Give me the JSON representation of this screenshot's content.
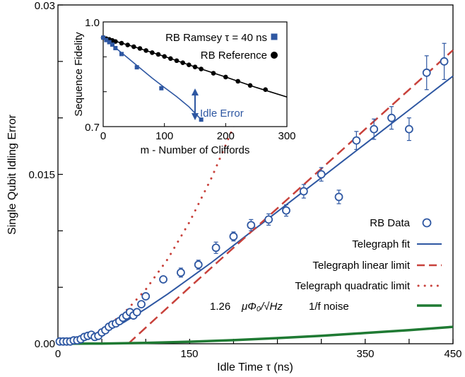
{
  "colors": {
    "blue": "#2E57A2",
    "red": "#C8413B",
    "green": "#1F7A33",
    "black": "#000000"
  },
  "chart_data": [
    {
      "type": "scatter",
      "xlabel": "Idle Time τ (ns)",
      "ylabel": "Single Qubit Idling Error",
      "xlim": [
        0,
        450
      ],
      "ylim": [
        0,
        0.03
      ],
      "xticks": [
        "0",
        "150",
        "350",
        "450"
      ],
      "yticks": [
        "0.00",
        "0.015",
        "0.03"
      ],
      "grid": false,
      "legend_position": "bottom-right",
      "legend": {
        "rb_data": "RB Data",
        "telegraph_fit": "Telegraph fit",
        "linear_limit": "Telegraph linear limit",
        "quadratic_limit": "Telegraph quadratic limit",
        "noise_prefix": "1.26",
        "noise_math": "μΦ₀/√Hz",
        "noise_suffix": "1/f noise"
      },
      "series": [
        {
          "name": "RB Data",
          "style": "open circles with error bars",
          "x": [
            2,
            6,
            10,
            14,
            18,
            22,
            26,
            30,
            34,
            38,
            42,
            46,
            50,
            54,
            58,
            62,
            66,
            70,
            74,
            78,
            82,
            86,
            90,
            95,
            100,
            120,
            140,
            160,
            180,
            200,
            220,
            240,
            260,
            280,
            300,
            320,
            340,
            360,
            380,
            400,
            420,
            440
          ],
          "y": [
            0.0002,
            0.0002,
            0.0002,
            0.0002,
            0.0003,
            0.0003,
            0.0004,
            0.0006,
            0.0007,
            0.0008,
            0.0006,
            0.0007,
            0.001,
            0.0012,
            0.0015,
            0.0017,
            0.0018,
            0.002,
            0.0023,
            0.0025,
            0.0028,
            0.0025,
            0.0028,
            0.0035,
            0.0042,
            0.0057,
            0.0063,
            0.007,
            0.0085,
            0.0095,
            0.0105,
            0.011,
            0.0118,
            0.0135,
            0.015,
            0.013,
            0.018,
            0.019,
            0.02,
            0.019,
            0.024,
            0.025
          ],
          "err": [
            0.0001,
            0.0001,
            0.0001,
            0.0001,
            0.0001,
            0.0001,
            0.0001,
            0.0001,
            0.0001,
            0.0001,
            0.0001,
            0.0001,
            0.0001,
            0.0001,
            0.0001,
            0.0001,
            0.0001,
            0.0001,
            0.0002,
            0.0002,
            0.0002,
            0.0002,
            0.0002,
            0.0002,
            0.0003,
            0.0003,
            0.0004,
            0.0004,
            0.0005,
            0.0004,
            0.0005,
            0.0005,
            0.0005,
            0.0006,
            0.0006,
            0.0006,
            0.0008,
            0.0009,
            0.001,
            0.001,
            0.0015,
            0.0016
          ]
        },
        {
          "name": "Telegraph fit",
          "style": "solid",
          "x": [
            0,
            25,
            50,
            75,
            100,
            125,
            150,
            175,
            200,
            225,
            250,
            275,
            300,
            325,
            350,
            375,
            400,
            425,
            450
          ],
          "y": [
            0.0,
            0.0003,
            0.0009,
            0.0019,
            0.0031,
            0.0044,
            0.0058,
            0.0072,
            0.0087,
            0.0102,
            0.0117,
            0.0132,
            0.0147,
            0.0162,
            0.0177,
            0.0192,
            0.0207,
            0.0222,
            0.0237
          ]
        },
        {
          "name": "Telegraph linear limit",
          "style": "dashed",
          "x": [
            80,
            150,
            200,
            250,
            300,
            350,
            400,
            450
          ],
          "y": [
            0.0,
            0.005,
            0.0085,
            0.012,
            0.0155,
            0.019,
            0.0225,
            0.026
          ]
        },
        {
          "name": "Telegraph quadratic limit",
          "style": "dotted",
          "x": [
            0,
            25,
            50,
            75,
            100,
            125,
            150,
            175,
            200,
            225
          ],
          "y": [
            0.0,
            0.0003,
            0.0012,
            0.0027,
            0.0048,
            0.0075,
            0.0108,
            0.0147,
            0.0192,
            0.0243
          ]
        },
        {
          "name": "1/f noise",
          "style": "solid-thick",
          "x": [
            0,
            50,
            100,
            150,
            200,
            250,
            300,
            350,
            400,
            450
          ],
          "y": [
            0.0,
            2e-05,
            8e-05,
            0.00018,
            0.00032,
            0.0005,
            0.0007,
            0.00095,
            0.0012,
            0.0015
          ]
        }
      ]
    },
    {
      "type": "line",
      "xlabel": "m - Number of Cliffords",
      "ylabel": "Sequence Fidelity",
      "xlim": [
        0,
        300
      ],
      "ylim": [
        0.7,
        1.0
      ],
      "xticks": [
        "0",
        "100",
        "200",
        "300"
      ],
      "yticks": [
        "0.7",
        "1.0"
      ],
      "legend_position": "top-right",
      "annotation": "Idle Error",
      "series": [
        {
          "name": "RB Ramsey τ = 40 ns",
          "marker": "square",
          "x": [
            0,
            5,
            10,
            15,
            20,
            30,
            55,
            95,
            160
          ],
          "y": [
            0.955,
            0.948,
            0.942,
            0.935,
            0.925,
            0.908,
            0.87,
            0.81,
            0.72
          ],
          "fit_x": [
            0,
            20,
            40,
            60,
            80,
            100,
            120,
            140,
            160
          ],
          "fit_y": [
            0.955,
            0.926,
            0.897,
            0.868,
            0.839,
            0.812,
            0.786,
            0.757,
            0.72
          ]
        },
        {
          "name": "RB Reference",
          "marker": "circle",
          "x": [
            0,
            5,
            10,
            15,
            20,
            30,
            40,
            50,
            60,
            70,
            80,
            90,
            100,
            110,
            120,
            130,
            140,
            150,
            160,
            180,
            200,
            220,
            240,
            265
          ],
          "y": [
            0.955,
            0.952,
            0.95,
            0.947,
            0.944,
            0.939,
            0.934,
            0.929,
            0.924,
            0.918,
            0.912,
            0.907,
            0.901,
            0.895,
            0.889,
            0.883,
            0.877,
            0.871,
            0.865,
            0.853,
            0.842,
            0.83,
            0.818,
            0.806
          ],
          "fit_x": [
            0,
            50,
            100,
            150,
            200,
            250,
            300
          ],
          "fit_y": [
            0.955,
            0.929,
            0.901,
            0.871,
            0.842,
            0.812,
            0.785
          ]
        }
      ]
    }
  ]
}
